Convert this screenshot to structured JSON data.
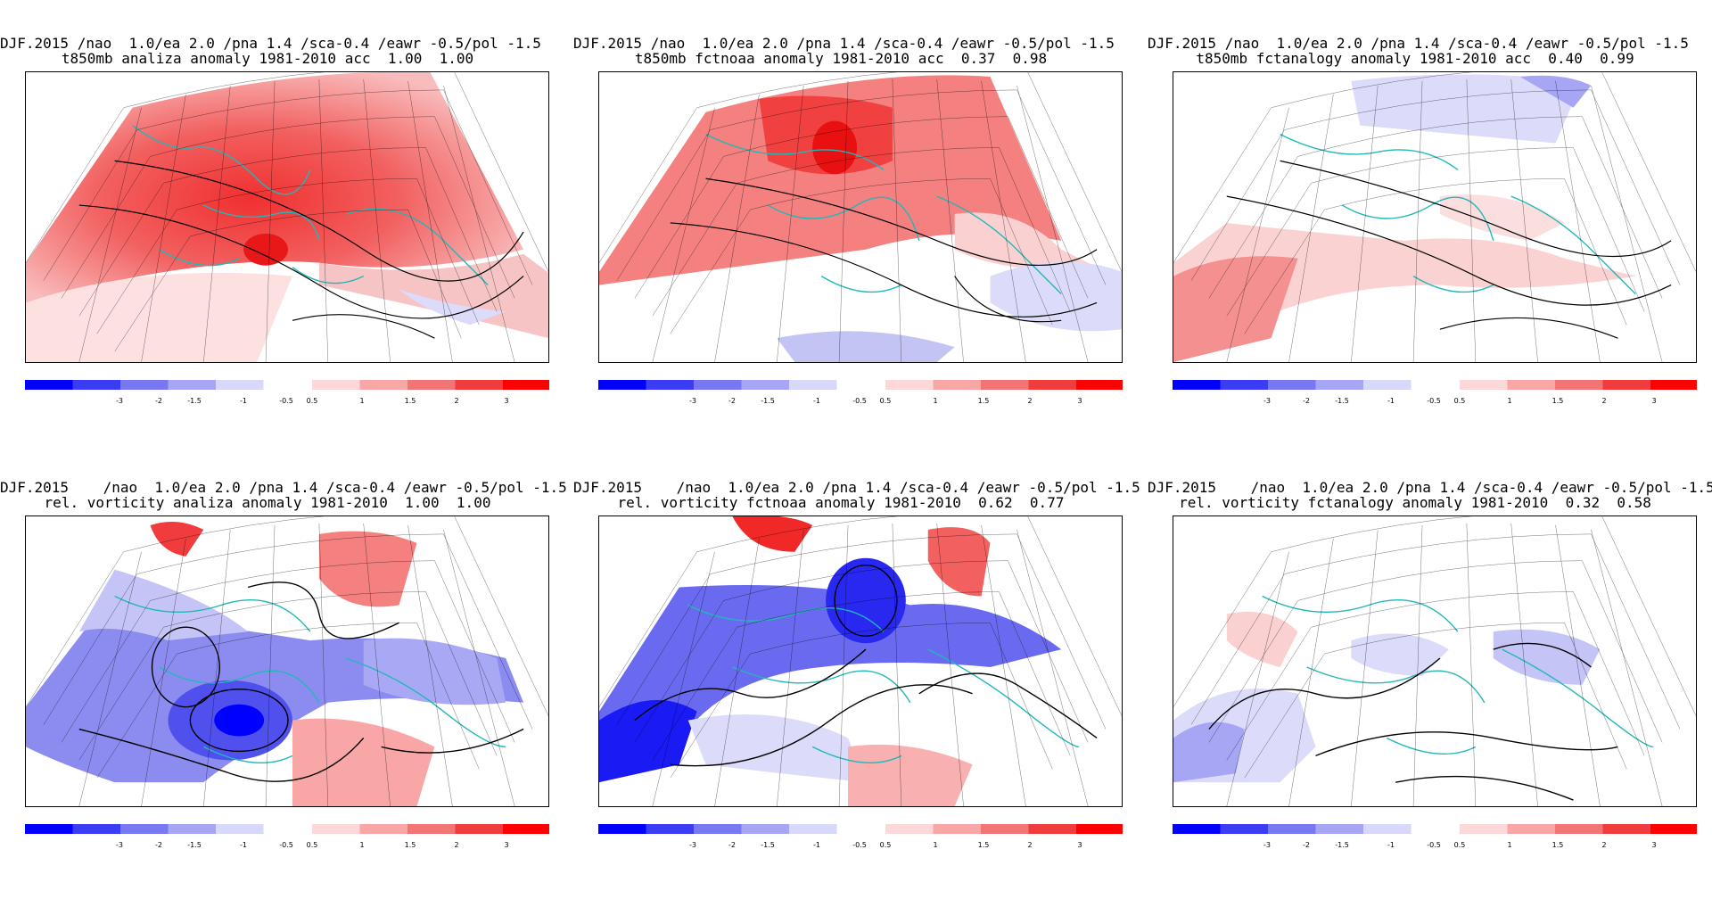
{
  "colorbar": {
    "neg_colors": [
      "#0000ff",
      "#3c3cf5",
      "#7878f3",
      "#a6a6f5",
      "#d8d8fb"
    ],
    "pos_colors": [
      "#fdd8d8",
      "#f8a6a6",
      "#f27575",
      "#f03c3c",
      "#fe0000"
    ],
    "neg_labels": [
      "-3",
      "-2",
      "-1.5",
      "-1",
      "-0.5"
    ],
    "pos_labels": [
      "0.5",
      "1",
      "1.5",
      "2",
      "3"
    ]
  },
  "panels": [
    {
      "title1": "DJF.2015 /nao  1.0/ea 2.0 /pna 1.4 /sca-0.4 /eawr -0.5/pol -1.5",
      "title2": "t850mb analiza anomaly 1981-2010 acc  1.00  1.00"
    },
    {
      "title1": "DJF.2015 /nao  1.0/ea 2.0 /pna 1.4 /sca-0.4 /eawr -0.5/pol -1.5",
      "title2": "t850mb fctnoaa anomaly 1981-2010 acc  0.37  0.98"
    },
    {
      "title1": "DJF.2015 /nao  1.0/ea 2.0 /pna 1.4 /sca-0.4 /eawr -0.5/pol -1.5",
      "title2": "t850mb fctanalogy anomaly 1981-2010 acc  0.40  0.99"
    },
    {
      "title1": "DJF.2015    /nao  1.0/ea 2.0 /pna 1.4 /sca-0.4 /eawr -0.5/pol -1.5",
      "title2": "rel. vorticity analiza anomaly 1981-2010  1.00  1.00"
    },
    {
      "title1": "DJF.2015    /nao  1.0/ea 2.0 /pna 1.4 /sca-0.4 /eawr -0.5/pol -1.5",
      "title2": "rel. vorticity fctnoaa anomaly 1981-2010  0.62  0.77"
    },
    {
      "title1": "DJF.2015    /nao  1.0/ea 2.0 /pna 1.4 /sca-0.4 /eawr -0.5/pol -1.5",
      "title2": "rel. vorticity fctanalogy anomaly 1981-2010  0.32  0.58"
    }
  ]
}
